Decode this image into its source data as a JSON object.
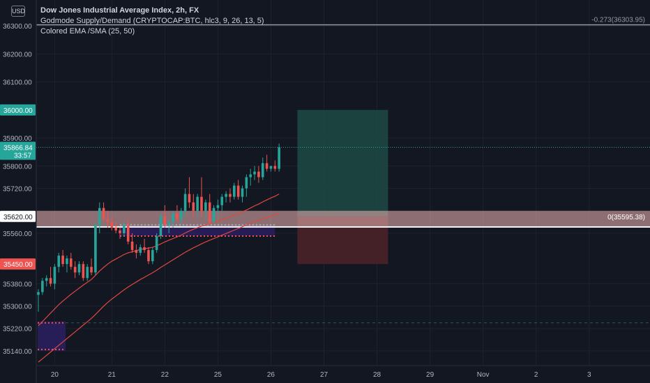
{
  "header": {
    "currency": "USD",
    "title": "Dow Jones Industrial Average Index, 2h, FX",
    "indicator1": "Godmode Supply/Demand (CRYPTOCAP:BTC, hlc3, 9, 26, 13, 5)",
    "indicator2": "Colored EMA /SMA (25, 50)"
  },
  "colors": {
    "background": "#131722",
    "grid": "#1e222d",
    "axis_text": "#b2b5be",
    "up": "#26a69a",
    "down": "#ef5350",
    "ema": "#e0483e",
    "supply_zone": "#f2b8b6",
    "take_profit": "#1f4a45",
    "stop_loss": "#4a2128",
    "demand_box": "#2a1f5e"
  },
  "chart_data": {
    "type": "candlestick",
    "ylim": [
      35100,
      36380
    ],
    "y_ticks": [
      {
        "v": 36300,
        "label": "36300.00"
      },
      {
        "v": 36200,
        "label": "36200.00"
      },
      {
        "v": 36100,
        "label": "36100.00"
      },
      {
        "v": 35900,
        "label": "35900.00"
      },
      {
        "v": 35800,
        "label": "35800.00"
      },
      {
        "v": 35720,
        "label": "35720.00"
      },
      {
        "v": 35560,
        "label": "35560.00"
      },
      {
        "v": 35380,
        "label": "35380.00"
      },
      {
        "v": 35300,
        "label": "35300.00"
      },
      {
        "v": 35220,
        "label": "35220.00"
      },
      {
        "v": 35140,
        "label": "35140.00"
      }
    ],
    "price_tags": [
      {
        "v": 36000,
        "label": "36000.00",
        "color": "#26a69a"
      },
      {
        "v": 35866.84,
        "label": "35866.84",
        "sub": "33:57",
        "color": "#26a69a"
      },
      {
        "v": 35620,
        "label": "35620.00",
        "color": "#ffffff"
      },
      {
        "v": 35450,
        "label": "35450.00",
        "color": "#ef5350"
      }
    ],
    "x_ticks": [
      {
        "i": 4,
        "label": "20"
      },
      {
        "i": 18,
        "label": "21"
      },
      {
        "i": 31,
        "label": "22"
      },
      {
        "i": 44,
        "label": "25"
      },
      {
        "i": 57,
        "label": "26"
      },
      {
        "i": 70,
        "label": "27"
      },
      {
        "i": 83,
        "label": "28"
      },
      {
        "i": 96,
        "label": "29"
      },
      {
        "i": 109,
        "label": "Nov"
      },
      {
        "i": 122,
        "label": "2"
      },
      {
        "i": 135,
        "label": "3"
      }
    ],
    "fib_lines": [
      {
        "v": 36303.95,
        "label": "-0.273(36303.95)"
      },
      {
        "v": 35595.38,
        "label": "0(35595.38)"
      }
    ],
    "supply_zone": [
      35585,
      35640
    ],
    "position": {
      "entry": 35620,
      "target": 36000,
      "stop": 35450,
      "start_i": 64,
      "end_i": 84
    },
    "candles": [
      [
        35340,
        35360,
        35280,
        35350
      ],
      [
        35350,
        35400,
        35340,
        35390
      ],
      [
        35390,
        35410,
        35370,
        35400
      ],
      [
        35400,
        35440,
        35370,
        35380
      ],
      [
        35380,
        35450,
        35360,
        35440
      ],
      [
        35440,
        35490,
        35420,
        35480
      ],
      [
        35480,
        35500,
        35440,
        35450
      ],
      [
        35450,
        35480,
        35420,
        35470
      ],
      [
        35470,
        35490,
        35430,
        35440
      ],
      [
        35440,
        35460,
        35400,
        35420
      ],
      [
        35420,
        35460,
        35410,
        35450
      ],
      [
        35450,
        35460,
        35390,
        35400
      ],
      [
        35400,
        35450,
        35390,
        35440
      ],
      [
        35440,
        35470,
        35410,
        35420
      ],
      [
        35420,
        35600,
        35410,
        35590
      ],
      [
        35590,
        35670,
        35560,
        35650
      ],
      [
        35650,
        35670,
        35600,
        35610
      ],
      [
        35610,
        35640,
        35580,
        35600
      ],
      [
        35600,
        35620,
        35570,
        35580
      ],
      [
        35580,
        35600,
        35560,
        35570
      ],
      [
        35570,
        35580,
        35540,
        35560
      ],
      [
        35560,
        35600,
        35550,
        35590
      ],
      [
        35590,
        35610,
        35520,
        35530
      ],
      [
        35530,
        35560,
        35490,
        35500
      ],
      [
        35500,
        35520,
        35470,
        35490
      ],
      [
        35490,
        35520,
        35480,
        35510
      ],
      [
        35510,
        35540,
        35490,
        35500
      ],
      [
        35500,
        35510,
        35450,
        35460
      ],
      [
        35460,
        35510,
        35450,
        35500
      ],
      [
        35500,
        35560,
        35490,
        35550
      ],
      [
        35550,
        35630,
        35540,
        35620
      ],
      [
        35620,
        35660,
        35580,
        35590
      ],
      [
        35590,
        35610,
        35560,
        35600
      ],
      [
        35600,
        35640,
        35580,
        35630
      ],
      [
        35630,
        35660,
        35600,
        35610
      ],
      [
        35610,
        35650,
        35590,
        35640
      ],
      [
        35640,
        35720,
        35620,
        35700
      ],
      [
        35700,
        35760,
        35650,
        35670
      ],
      [
        35670,
        35700,
        35620,
        35640
      ],
      [
        35640,
        35700,
        35620,
        35690
      ],
      [
        35690,
        35760,
        35620,
        35640
      ],
      [
        35640,
        35680,
        35610,
        35670
      ],
      [
        35670,
        35700,
        35590,
        35600
      ],
      [
        35600,
        35660,
        35590,
        35650
      ],
      [
        35650,
        35680,
        35630,
        35660
      ],
      [
        35660,
        35700,
        35640,
        35690
      ],
      [
        35690,
        35710,
        35670,
        35700
      ],
      [
        35700,
        35720,
        35670,
        35690
      ],
      [
        35690,
        35740,
        35680,
        35730
      ],
      [
        35730,
        35750,
        35680,
        35690
      ],
      [
        35690,
        35730,
        35670,
        35720
      ],
      [
        35720,
        35770,
        35690,
        35760
      ],
      [
        35760,
        35790,
        35730,
        35770
      ],
      [
        35770,
        35800,
        35750,
        35780
      ],
      [
        35780,
        35800,
        35740,
        35760
      ],
      [
        35760,
        35830,
        35750,
        35810
      ],
      [
        35810,
        35840,
        35780,
        35790
      ],
      [
        35790,
        35800,
        35780,
        35800
      ],
      [
        35800,
        35820,
        35780,
        35790
      ],
      [
        35790,
        35880,
        35780,
        35866.84
      ]
    ],
    "ema": [
      35230,
      35245,
      35260,
      35275,
      35290,
      35305,
      35318,
      35330,
      35342,
      35353,
      35364,
      35375,
      35385,
      35395,
      35410,
      35425,
      35438,
      35450,
      35460,
      35468,
      35476,
      35484,
      35490,
      35494,
      35498,
      35502,
      35505,
      35507,
      35510,
      35515,
      35522,
      35529,
      35535,
      35541,
      35547,
      35553,
      35561,
      35568,
      35574,
      35580,
      35585,
      35590,
      35593,
      35598,
      35603,
      35608,
      35614,
      35619,
      35625,
      35630,
      35636,
      35643,
      35650,
      35658,
      35664,
      35672,
      35679,
      35686,
      35692,
      35700
    ],
    "sma": [
      35100,
      35112,
      35124,
      35136,
      35148,
      35160,
      35172,
      35184,
      35196,
      35208,
      35220,
      35232,
      35244,
      35256,
      35270,
      35285,
      35300,
      35313,
      35325,
      35336,
      35347,
      35358,
      35368,
      35377,
      35386,
      35395,
      35403,
      35411,
      35419,
      35428,
      35438,
      35447,
      35456,
      35465,
      35474,
      35483,
      35492,
      35500,
      35508,
      35515,
      35522,
      35529,
      35535,
      35541,
      35547,
      35553,
      35559,
      35565,
      35571,
      35577,
      35583,
      35589,
      35595,
      35601,
      35606,
      35611,
      35616,
      35621,
      35626,
      35632
    ]
  }
}
